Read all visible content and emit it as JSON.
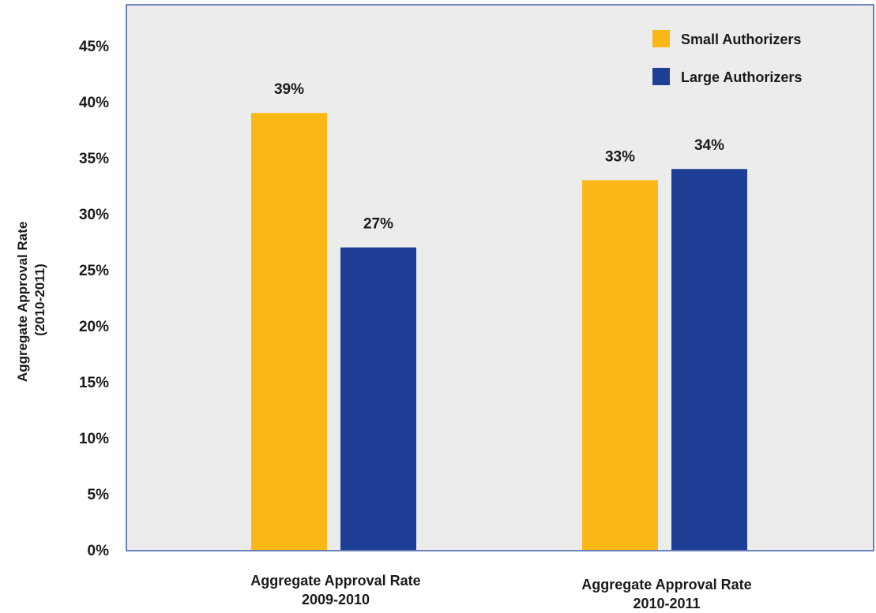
{
  "chart_data": {
    "type": "bar",
    "categories": [
      [
        "Aggregate Approval Rate",
        "2009-2010"
      ],
      [
        "Aggregate Approval Rate",
        "2010-2011"
      ]
    ],
    "series": [
      {
        "name": "Small Authorizers",
        "color": "#FBB716",
        "values": [
          39,
          33
        ],
        "labels": [
          "39%",
          "33%"
        ]
      },
      {
        "name": "Large Authorizers",
        "color": "#1F3F96",
        "values": [
          27,
          34
        ],
        "labels": [
          "27%",
          "34%"
        ]
      }
    ],
    "ylabel": [
      "Aggregate Approval Rate",
      "(2010-2011)"
    ],
    "ylim": [
      0,
      45
    ],
    "yticks": [
      "0%",
      "5%",
      "10%",
      "15%",
      "20%",
      "25%",
      "30%",
      "35%",
      "40%",
      "45%"
    ],
    "grid": false,
    "legend_position": "top-right",
    "plot_background": "#ECECEC",
    "axis_color": "#3F5CA8"
  }
}
